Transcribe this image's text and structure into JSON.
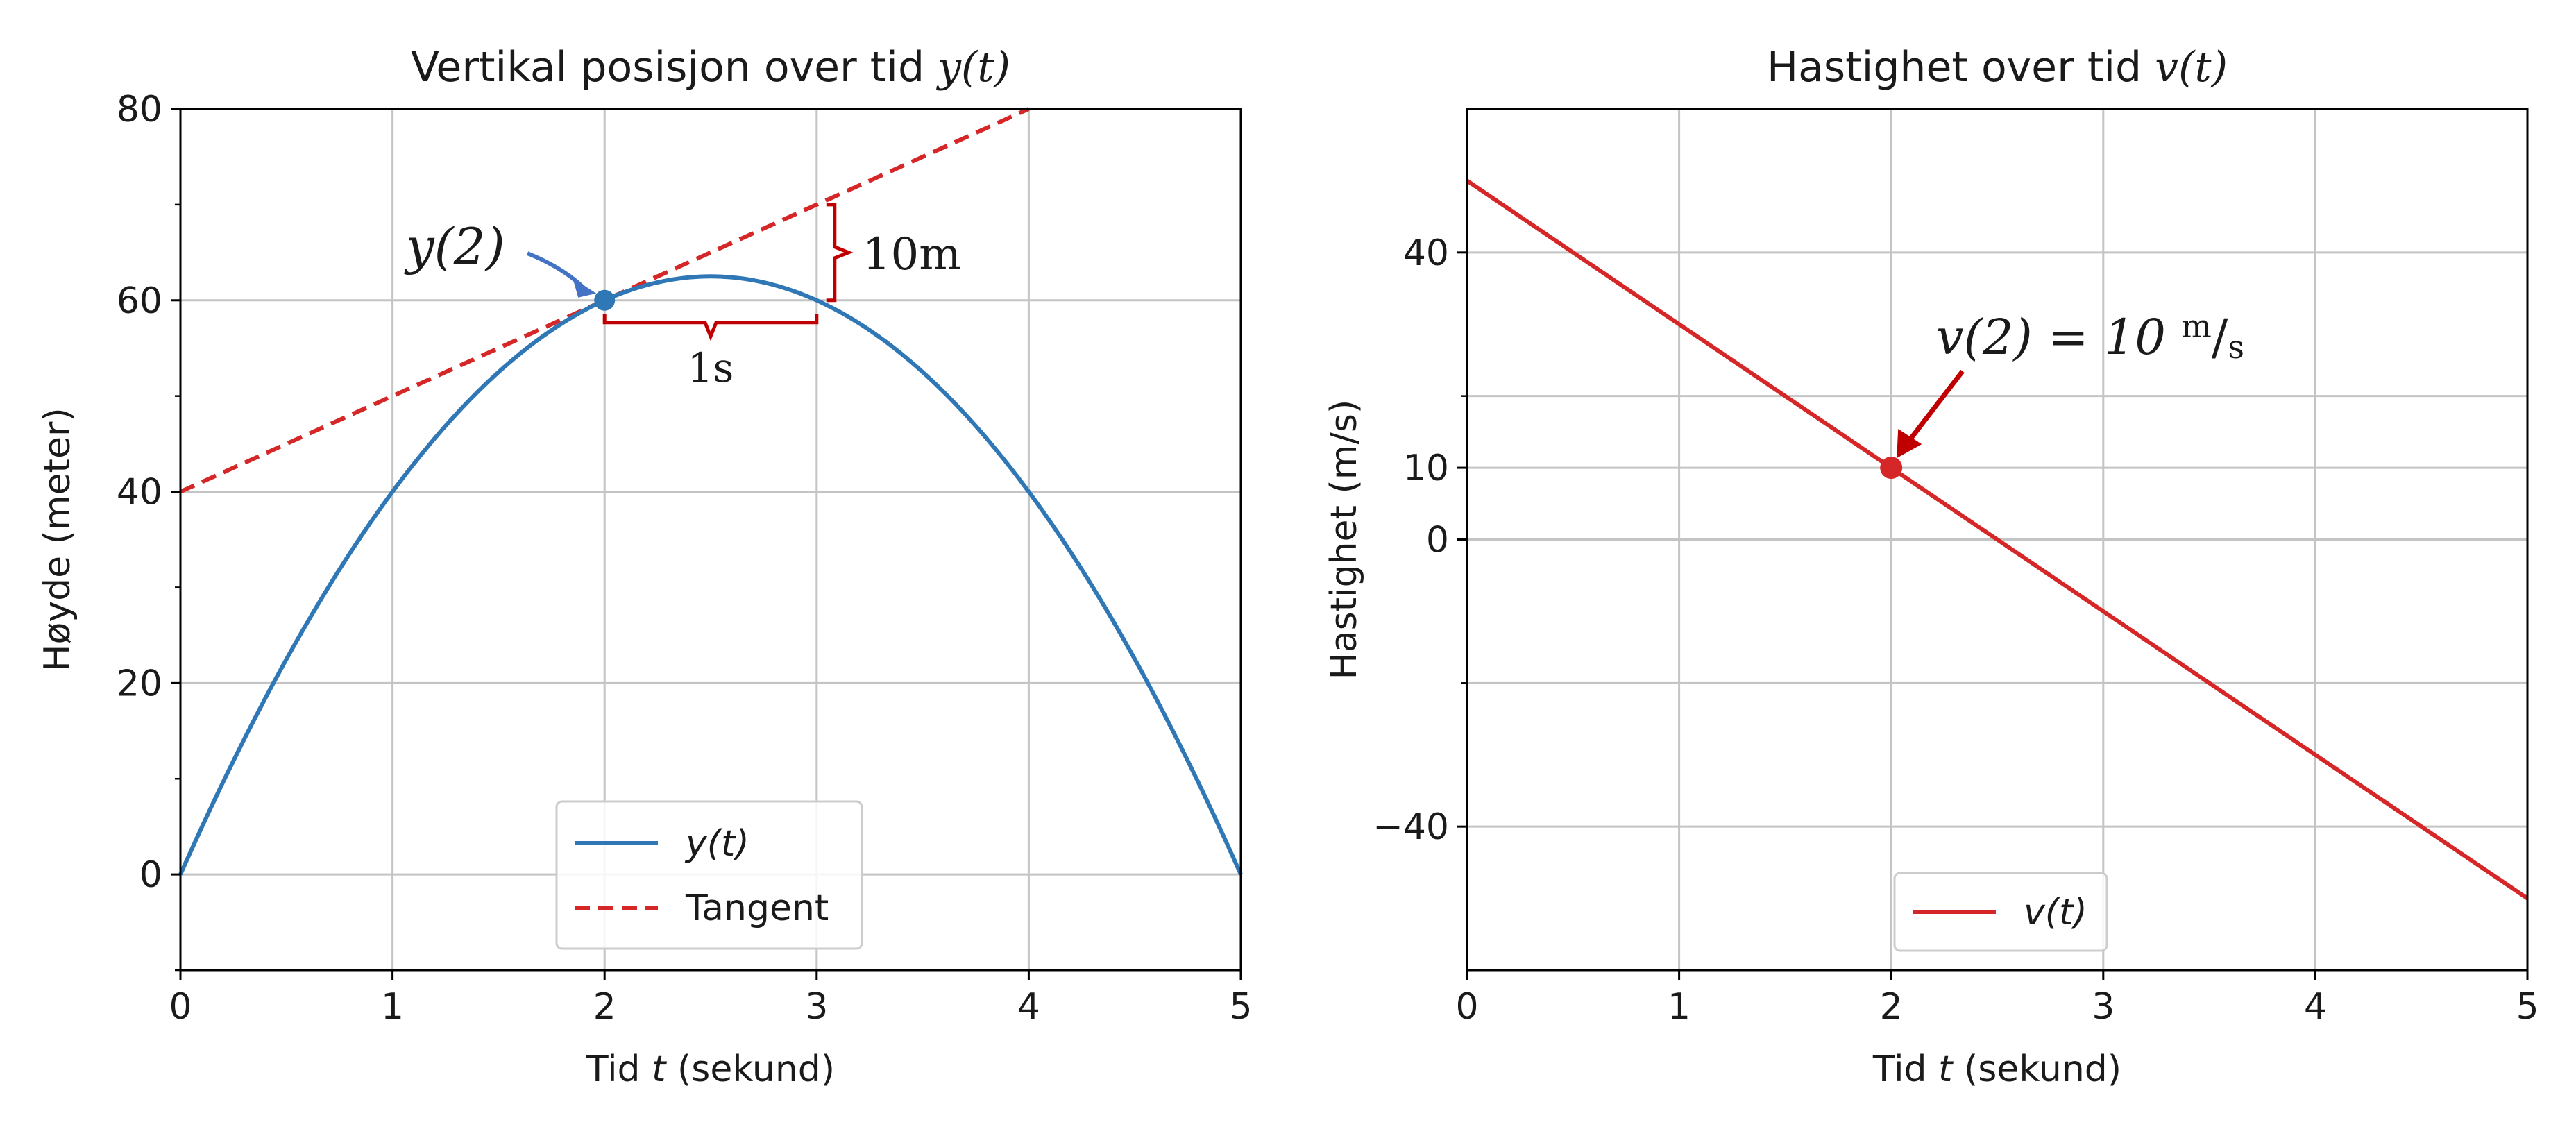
{
  "colors": {
    "blue": "#2f78b5",
    "red": "#d62728",
    "dark_red": "#c00000",
    "pointer_blue": "#4472c4",
    "grid": "#c4c4c4",
    "axis": "#000000"
  },
  "chart_data": [
    {
      "type": "line",
      "title": "Vertikal posisjon over tid y(t)",
      "title_text": "Vertikal posisjon over tid ",
      "title_math": "y(t)",
      "xlabel_pre": "Tid ",
      "xlabel_var": "t",
      "xlabel_post": " (sekund)",
      "ylabel": "Høyde (meter)",
      "xlim": [
        0,
        5
      ],
      "ylim": [
        -10,
        80
      ],
      "xticks": [
        0,
        1,
        2,
        3,
        4,
        5
      ],
      "yticks": [
        0,
        20,
        40,
        60,
        80
      ],
      "yminor": [
        -10,
        10,
        30,
        50,
        70
      ],
      "grid": true,
      "legend": {
        "position": "lower center",
        "entries": [
          "y(t)",
          "Tangent"
        ]
      },
      "series": [
        {
          "name": "y(t)",
          "style": "solid",
          "color": "#2f78b5",
          "formula": "50t - 10t^2",
          "x_range": [
            0,
            5
          ]
        },
        {
          "name": "Tangent",
          "style": "dashed",
          "color": "#d62728",
          "formula": "40 + 10t",
          "x_range": [
            0,
            4
          ]
        }
      ],
      "point": {
        "x": 2,
        "y": 60
      },
      "annotations": {
        "point_label": "y(2)",
        "rise_label": "10m",
        "run_label": "1s"
      }
    },
    {
      "type": "line",
      "title": "Hastighet over tid v(t)",
      "title_text": "Hastighet over tid ",
      "title_math": "v(t)",
      "xlabel_pre": "Tid ",
      "xlabel_var": "t",
      "xlabel_post": " (sekund)",
      "ylabel": "Hastighet (m/s)",
      "xlim": [
        0,
        5
      ],
      "ylim": [
        -60,
        60
      ],
      "xticks": [
        0,
        1,
        2,
        3,
        4,
        5
      ],
      "ytick_values": [
        -40,
        0,
        10,
        40
      ],
      "ytick_labels": [
        "−40",
        "0",
        "10",
        "40"
      ],
      "yminor": [
        -20,
        20
      ],
      "grid": true,
      "legend": {
        "position": "lower center",
        "entries": [
          "v(t)"
        ]
      },
      "series": [
        {
          "name": "v(t)",
          "style": "solid",
          "color": "#d62728",
          "formula": "50 - 20t",
          "x_range": [
            0,
            5
          ]
        }
      ],
      "point": {
        "x": 2,
        "y": 10
      },
      "annotations": {
        "point_label_pre": "v(2) = 10 ",
        "point_label_unit_num": "m",
        "point_label_unit_sep": "/",
        "point_label_unit_den": "s"
      }
    }
  ]
}
